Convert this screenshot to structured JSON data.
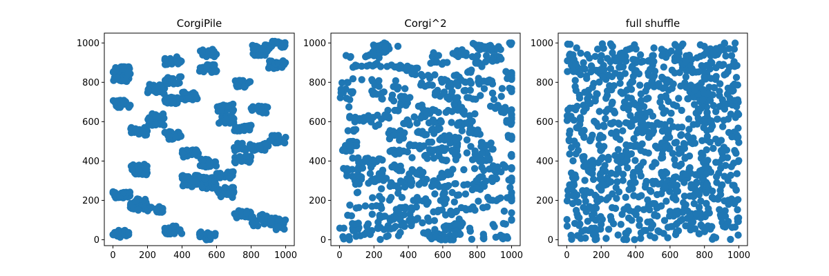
{
  "figure": {
    "background": "#ffffff",
    "marker_color": "#1f77b4"
  },
  "chart_data": [
    {
      "type": "scatter",
      "title": "CorgiPile",
      "xlabel": "",
      "ylabel": "",
      "xlim": [
        -50,
        1050
      ],
      "ylim": [
        -30,
        1050
      ],
      "xticks": [
        0,
        200,
        400,
        600,
        800,
        1000
      ],
      "yticks": [
        0,
        200,
        400,
        600,
        800,
        1000
      ],
      "grid": false,
      "legend": null,
      "color": "#1f77b4",
      "clusters": [
        {
          "x": [
            0,
            100
          ],
          "y": [
            800,
            880
          ],
          "n": 40
        },
        {
          "x": [
            0,
            100
          ],
          "y": [
            670,
            710
          ],
          "n": 22
        },
        {
          "x": [
            0,
            100
          ],
          "y": [
            210,
            250
          ],
          "n": 22
        },
        {
          "x": [
            0,
            100
          ],
          "y": [
            10,
            50
          ],
          "n": 20
        },
        {
          "x": [
            100,
            200
          ],
          "y": [
            530,
            570
          ],
          "n": 20
        },
        {
          "x": [
            100,
            200
          ],
          "y": [
            330,
            390
          ],
          "n": 30
        },
        {
          "x": [
            100,
            200
          ],
          "y": [
            150,
            210
          ],
          "n": 30
        },
        {
          "x": [
            200,
            300
          ],
          "y": [
            740,
            790
          ],
          "n": 30
        },
        {
          "x": [
            200,
            300
          ],
          "y": [
            580,
            640
          ],
          "n": 30
        },
        {
          "x": [
            200,
            300
          ],
          "y": [
            140,
            170
          ],
          "n": 20
        },
        {
          "x": [
            300,
            400
          ],
          "y": [
            890,
            930
          ],
          "n": 22
        },
        {
          "x": [
            300,
            400
          ],
          "y": [
            790,
            830
          ],
          "n": 22
        },
        {
          "x": [
            300,
            400
          ],
          "y": [
            690,
            730
          ],
          "n": 20
        },
        {
          "x": [
            300,
            400
          ],
          "y": [
            510,
            550
          ],
          "n": 22
        },
        {
          "x": [
            300,
            400
          ],
          "y": [
            30,
            70
          ],
          "n": 20
        },
        {
          "x": [
            400,
            500
          ],
          "y": [
            710,
            750
          ],
          "n": 22
        },
        {
          "x": [
            400,
            500
          ],
          "y": [
            420,
            460
          ],
          "n": 22
        },
        {
          "x": [
            400,
            500
          ],
          "y": [
            270,
            330
          ],
          "n": 40
        },
        {
          "x": [
            500,
            600
          ],
          "y": [
            930,
            970
          ],
          "n": 20
        },
        {
          "x": [
            500,
            600
          ],
          "y": [
            850,
            890
          ],
          "n": 22
        },
        {
          "x": [
            500,
            600
          ],
          "y": [
            370,
            410
          ],
          "n": 20
        },
        {
          "x": [
            500,
            600
          ],
          "y": [
            260,
            320
          ],
          "n": 30
        },
        {
          "x": [
            500,
            600
          ],
          "y": [
            0,
            40
          ],
          "n": 20
        },
        {
          "x": [
            600,
            700
          ],
          "y": [
            650,
            690
          ],
          "n": 20
        },
        {
          "x": [
            600,
            700
          ],
          "y": [
            590,
            630
          ],
          "n": 20
        },
        {
          "x": [
            600,
            700
          ],
          "y": [
            310,
            350
          ],
          "n": 20
        },
        {
          "x": [
            600,
            700
          ],
          "y": [
            210,
            270
          ],
          "n": 30
        },
        {
          "x": [
            700,
            800
          ],
          "y": [
            770,
            810
          ],
          "n": 20
        },
        {
          "x": [
            700,
            800
          ],
          "y": [
            550,
            590
          ],
          "n": 20
        },
        {
          "x": [
            700,
            800
          ],
          "y": [
            450,
            490
          ],
          "n": 20
        },
        {
          "x": [
            700,
            800
          ],
          "y": [
            390,
            430
          ],
          "n": 20
        },
        {
          "x": [
            700,
            800
          ],
          "y": [
            110,
            150
          ],
          "n": 20
        },
        {
          "x": [
            800,
            900
          ],
          "y": [
            930,
            990
          ],
          "n": 30
        },
        {
          "x": [
            800,
            900
          ],
          "y": [
            640,
            680
          ],
          "n": 20
        },
        {
          "x": [
            800,
            900
          ],
          "y": [
            450,
            490
          ],
          "n": 20
        },
        {
          "x": [
            800,
            900
          ],
          "y": [
            70,
            130
          ],
          "n": 30
        },
        {
          "x": [
            900,
            1000
          ],
          "y": [
            970,
            1010
          ],
          "n": 20
        },
        {
          "x": [
            900,
            1000
          ],
          "y": [
            870,
            910
          ],
          "n": 22
        },
        {
          "x": [
            900,
            1000
          ],
          "y": [
            490,
            530
          ],
          "n": 22
        },
        {
          "x": [
            900,
            1000
          ],
          "y": [
            50,
            110
          ],
          "n": 30
        }
      ]
    },
    {
      "type": "scatter",
      "title": "Corgi^2",
      "xlabel": "",
      "ylabel": "",
      "xlim": [
        -50,
        1050
      ],
      "ylim": [
        -30,
        1050
      ],
      "xticks": [
        0,
        200,
        400,
        600,
        800,
        1000
      ],
      "yticks": [
        0,
        200,
        400,
        600,
        800,
        1000
      ],
      "grid": false,
      "legend": null,
      "color": "#1f77b4",
      "distribution": "points spread over [0,1000]x[0,1000] with short horizontal streaks",
      "count": 1000,
      "x_range": [
        0,
        1000
      ],
      "y_range": [
        0,
        1000
      ]
    },
    {
      "type": "scatter",
      "title": "full shuffle",
      "xlabel": "",
      "ylabel": "",
      "xlim": [
        -50,
        1050
      ],
      "ylim": [
        -30,
        1050
      ],
      "xticks": [
        0,
        200,
        400,
        600,
        800,
        1000
      ],
      "yticks": [
        0,
        200,
        400,
        600,
        800,
        1000
      ],
      "grid": false,
      "legend": null,
      "color": "#1f77b4",
      "distribution": "uniform over [0,1000]x[0,1000]",
      "count": 1000,
      "x_range": [
        0,
        1000
      ],
      "y_range": [
        0,
        1000
      ]
    }
  ]
}
